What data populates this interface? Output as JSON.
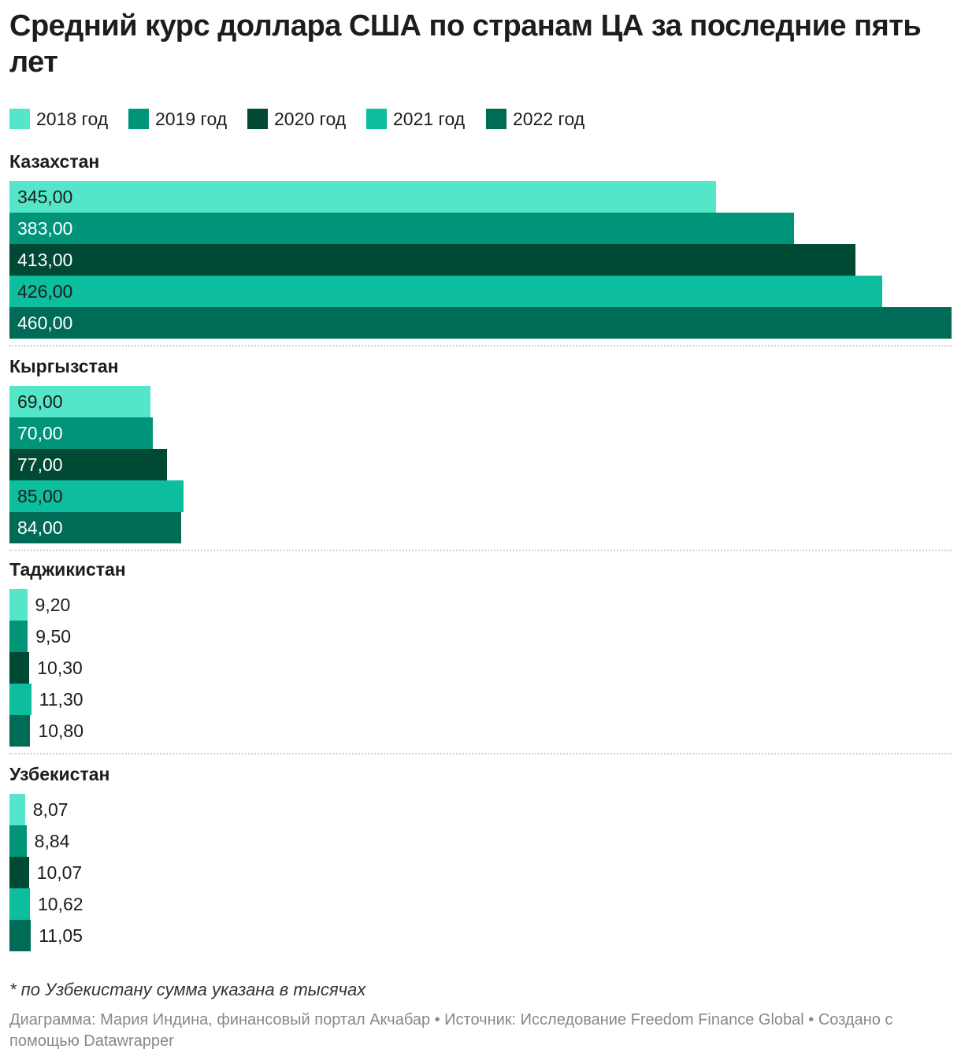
{
  "chart_data": {
    "type": "bar",
    "orientation": "horizontal",
    "title": "Средний курс доллара США по странам ЦА за последние пять лет",
    "legend_position": "top",
    "series": [
      {
        "name": "2018 год",
        "color": "#53e6c9"
      },
      {
        "name": "2019 год",
        "color": "#009478"
      },
      {
        "name": "2020 год",
        "color": "#004935"
      },
      {
        "name": "2021 год",
        "color": "#0cbd9e"
      },
      {
        "name": "2022 год",
        "color": "#006b56"
      }
    ],
    "groups": [
      {
        "name": "Казахстан",
        "values": [
          345,
          383,
          413,
          426,
          460
        ],
        "labels": [
          "345,00",
          "383,00",
          "413,00",
          "426,00",
          "460,00"
        ]
      },
      {
        "name": "Кыргызстан",
        "values": [
          69,
          70,
          77,
          85,
          84
        ],
        "labels": [
          "69,00",
          "70,00",
          "77,00",
          "85,00",
          "84,00"
        ]
      },
      {
        "name": "Таджикистан",
        "values": [
          9.2,
          9.5,
          10.3,
          11.3,
          10.8
        ],
        "labels": [
          "9,20",
          "9,50",
          "10,30",
          "11,30",
          "10,80"
        ]
      },
      {
        "name": "Узбекистан",
        "values": [
          8.07,
          8.84,
          10.07,
          10.62,
          11.05
        ],
        "labels": [
          "8,07",
          "8,84",
          "10,07",
          "10,62",
          "11,05"
        ]
      }
    ],
    "xlim": [
      0,
      460
    ],
    "note": "* по Узбекистану сумма указана в тысячах",
    "footer": "Диаграмма: Мария Индина, финансовый портал Акчабар • Источник: Исследование Freedom Finance Global • Создано с помощью Datawrapper"
  }
}
